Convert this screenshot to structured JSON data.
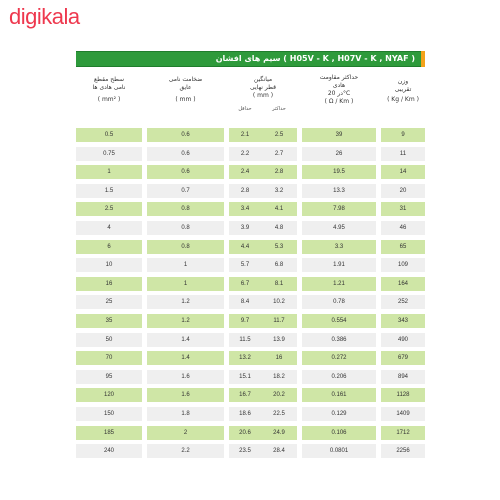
{
  "brand": "digikala",
  "table": {
    "title": "سیم های افشان ( H05V - K , H07V - K , NYAF )",
    "headers": {
      "area_line1": "سطح مقطع",
      "area_line2": "نامی هادی ها",
      "area_unit": "( mm² )",
      "insulation_line1": "ضخامت نامی",
      "insulation_line2": "عایق",
      "insulation_unit": "( mm )",
      "diameter_line1": "میانگین",
      "diameter_line2": "قطر نهایی",
      "diameter_unit": "( mm )",
      "diameter_min": "حداقل",
      "diameter_max": "حداکثر",
      "resistance_line1": "حداکثر مقاومت",
      "resistance_line2": "هادی",
      "resistance_line3": "در 20°C",
      "resistance_unit": "( Ω / Km )",
      "weight_line1": "وزن",
      "weight_line2": "تقریبی",
      "weight_unit": "( Kg / Km )"
    },
    "rows": [
      {
        "area": "0.5",
        "ins": "0.6",
        "min": "2.1",
        "max": "2.5",
        "res": "39",
        "wt": "9"
      },
      {
        "area": "0.75",
        "ins": "0.6",
        "min": "2.2",
        "max": "2.7",
        "res": "26",
        "wt": "11"
      },
      {
        "area": "1",
        "ins": "0.6",
        "min": "2.4",
        "max": "2.8",
        "res": "19.5",
        "wt": "14"
      },
      {
        "area": "1.5",
        "ins": "0.7",
        "min": "2.8",
        "max": "3.2",
        "res": "13.3",
        "wt": "20"
      },
      {
        "area": "2.5",
        "ins": "0.8",
        "min": "3.4",
        "max": "4.1",
        "res": "7.98",
        "wt": "31"
      },
      {
        "area": "4",
        "ins": "0.8",
        "min": "3.9",
        "max": "4.8",
        "res": "4.95",
        "wt": "46"
      },
      {
        "area": "6",
        "ins": "0.8",
        "min": "4.4",
        "max": "5.3",
        "res": "3.3",
        "wt": "65"
      },
      {
        "area": "10",
        "ins": "1",
        "min": "5.7",
        "max": "6.8",
        "res": "1.91",
        "wt": "109"
      },
      {
        "area": "16",
        "ins": "1",
        "min": "6.7",
        "max": "8.1",
        "res": "1.21",
        "wt": "164"
      },
      {
        "area": "25",
        "ins": "1.2",
        "min": "8.4",
        "max": "10.2",
        "res": "0.78",
        "wt": "252"
      },
      {
        "area": "35",
        "ins": "1.2",
        "min": "9.7",
        "max": "11.7",
        "res": "0.554",
        "wt": "343"
      },
      {
        "area": "50",
        "ins": "1.4",
        "min": "11.5",
        "max": "13.9",
        "res": "0.386",
        "wt": "490"
      },
      {
        "area": "70",
        "ins": "1.4",
        "min": "13.2",
        "max": "16",
        "res": "0.272",
        "wt": "679"
      },
      {
        "area": "95",
        "ins": "1.6",
        "min": "15.1",
        "max": "18.2",
        "res": "0.206",
        "wt": "894"
      },
      {
        "area": "120",
        "ins": "1.6",
        "min": "16.7",
        "max": "20.2",
        "res": "0.161",
        "wt": "1128"
      },
      {
        "area": "150",
        "ins": "1.8",
        "min": "18.6",
        "max": "22.5",
        "res": "0.129",
        "wt": "1409"
      },
      {
        "area": "185",
        "ins": "2",
        "min": "20.6",
        "max": "24.9",
        "res": "0.106",
        "wt": "1712"
      },
      {
        "area": "240",
        "ins": "2.2",
        "min": "23.5",
        "max": "28.4",
        "res": "0.0801",
        "wt": "2256"
      }
    ]
  },
  "colors": {
    "title_bar": "#2e9a3b",
    "accent": "#f3a21a",
    "row_green": "#cfe6a6",
    "row_grey": "#efefef",
    "brand": "#ee384e"
  }
}
